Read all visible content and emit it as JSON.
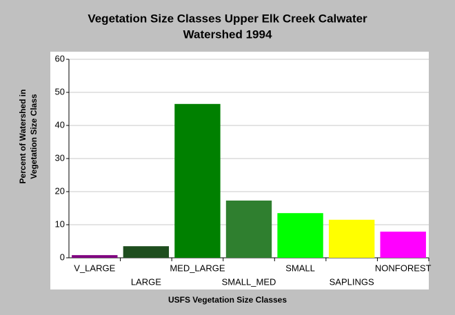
{
  "chart_data": {
    "type": "bar",
    "title": [
      "Vegetation Size Classes Upper Elk Creek Calwater",
      "Watershed 1994"
    ],
    "xlabel": "USFS Vegetation Size Classes",
    "ylabel": [
      "Percent of Watershed in",
      "Vegetation Size Class"
    ],
    "categories": [
      "V_LARGE",
      "LARGE",
      "MED_LARGE",
      "SMALL_MED",
      "SMALL",
      "SAPLINGS",
      "NONFOREST"
    ],
    "values": [
      0.8,
      3.5,
      46.5,
      17.3,
      13.5,
      11.5,
      7.9
    ],
    "colors": [
      "#800080",
      "#1e4d1e",
      "#008000",
      "#2f7f2f",
      "#00ff00",
      "#ffff00",
      "#ff00ff"
    ],
    "ylim": [
      0,
      60
    ],
    "yticks": [
      0,
      10,
      20,
      30,
      40,
      50,
      60
    ],
    "grid": true
  }
}
